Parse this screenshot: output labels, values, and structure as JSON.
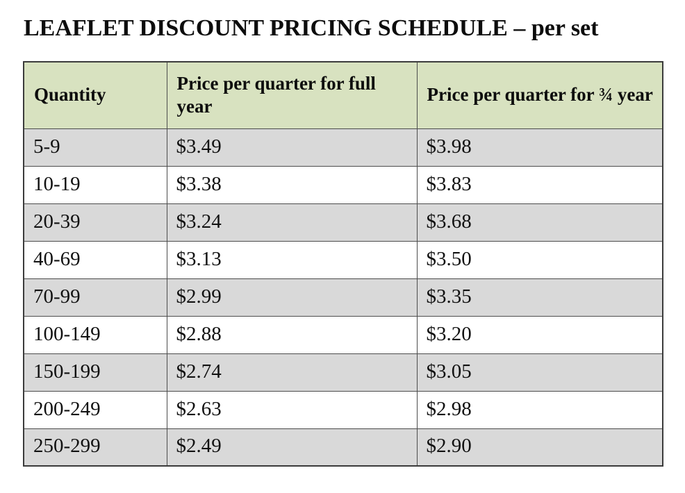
{
  "page": {
    "title": "LEAFLET DISCOUNT PRICING SCHEDULE – per set"
  },
  "colors": {
    "header_bg": "#d8e2c0",
    "row_alt_bg": "#d9d9d9",
    "row_bg": "#ffffff",
    "border": "#4c4c4c",
    "text": "#0d0d0d"
  },
  "table": {
    "columns": [
      {
        "label": "Quantity"
      },
      {
        "label": "Price per quarter for full year"
      },
      {
        "label": "Price per quarter for ¾ year"
      }
    ],
    "rows": [
      {
        "quantity": "5-9",
        "price_full_year": "$3.49",
        "price_three_quarter_year": "$3.98"
      },
      {
        "quantity": "10-19",
        "price_full_year": "$3.38",
        "price_three_quarter_year": "$3.83"
      },
      {
        "quantity": "20-39",
        "price_full_year": "$3.24",
        "price_three_quarter_year": "$3.68"
      },
      {
        "quantity": "40-69",
        "price_full_year": "$3.13",
        "price_three_quarter_year": "$3.50"
      },
      {
        "quantity": "70-99",
        "price_full_year": "$2.99",
        "price_three_quarter_year": "$3.35"
      },
      {
        "quantity": "100-149",
        "price_full_year": "$2.88",
        "price_three_quarter_year": "$3.20"
      },
      {
        "quantity": "150-199",
        "price_full_year": "$2.74",
        "price_three_quarter_year": "$3.05"
      },
      {
        "quantity": "200-249",
        "price_full_year": "$2.63",
        "price_three_quarter_year": "$2.98"
      },
      {
        "quantity": "250-299",
        "price_full_year": "$2.49",
        "price_three_quarter_year": "$2.90"
      }
    ]
  }
}
